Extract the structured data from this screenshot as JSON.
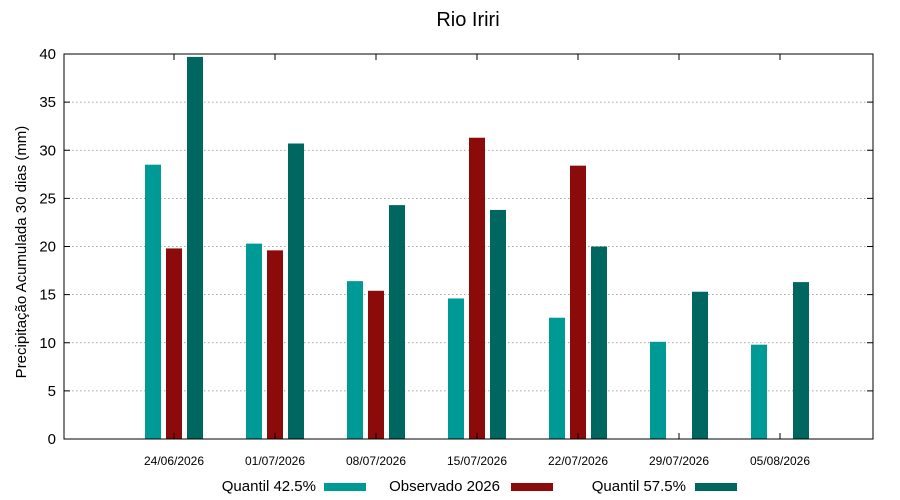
{
  "chart_data": {
    "type": "bar",
    "title": "Rio Iriri",
    "xlabel": "",
    "ylabel": "Precipitação Acumulada 30 dias (mm)",
    "ylim": [
      0,
      40
    ],
    "yticks": [
      0,
      5,
      10,
      15,
      20,
      25,
      30,
      35,
      40
    ],
    "grid": true,
    "legend_position": "bottom",
    "categories": [
      "24/06/2026",
      "01/07/2026",
      "08/07/2026",
      "15/07/2026",
      "22/07/2026",
      "29/07/2026",
      "05/08/2026"
    ],
    "series": [
      {
        "name": "Quantil 42.5%",
        "color": "#009a96",
        "values": [
          28.5,
          20.3,
          16.4,
          14.6,
          12.6,
          10.1,
          9.8
        ]
      },
      {
        "name": "Observado 2026",
        "color": "#8b0a0a",
        "values": [
          19.8,
          19.6,
          15.4,
          31.3,
          28.4,
          null,
          null
        ]
      },
      {
        "name": "Quantil 57.5%",
        "color": "#006660",
        "values": [
          39.7,
          30.7,
          24.3,
          23.8,
          20.0,
          15.3,
          16.3
        ]
      }
    ]
  }
}
